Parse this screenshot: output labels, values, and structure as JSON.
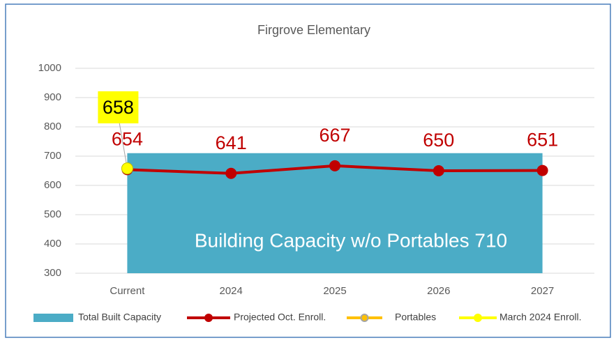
{
  "chart_data": {
    "type": "combo",
    "title": "Firgrove Elementary",
    "categories": [
      "Current",
      "2024",
      "2025",
      "2026",
      "2027"
    ],
    "series": [
      {
        "name": "Total Built Capacity",
        "type": "area",
        "color": "#4bacc6",
        "values": [
          710,
          710,
          710,
          710,
          710
        ]
      },
      {
        "name": "Projected Oct. Enroll.",
        "type": "line",
        "color": "#c00000",
        "values": [
          654,
          641,
          667,
          650,
          651
        ]
      },
      {
        "name": "Portables",
        "type": "line",
        "color": "#ffc000",
        "values": [
          null,
          null,
          null,
          null,
          null
        ]
      },
      {
        "name": "March 2024 Enroll.",
        "type": "line",
        "color": "#ffff00",
        "values": [
          658,
          null,
          null,
          null,
          null
        ]
      }
    ],
    "annotation": "Building Capacity w/o Portables 710",
    "ylim": [
      300,
      1000
    ],
    "yticks": [
      300,
      400,
      500,
      600,
      700,
      800,
      900,
      1000
    ],
    "grid": true,
    "legend": "bottom"
  }
}
